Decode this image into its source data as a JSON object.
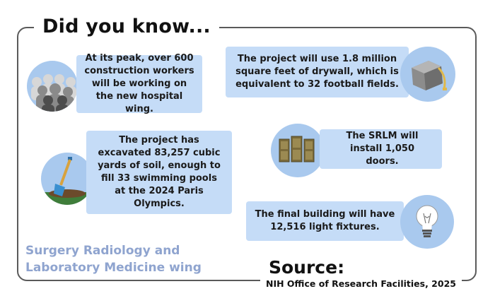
{
  "header": {
    "title": "Did you know..."
  },
  "facts": [
    "At its peak, over 600 construction workers will be working on the new hospital wing.",
    "The project will use 1.8 million square feet of drywall, which is equivalent to 32 football fields.",
    "The project has excavated 83,257 cubic yards of soil, enough to fill 33 swimming pools at the 2024 Paris Olympics.",
    "The SRLM will install 1,050 doors.",
    "The final building will have 12,516 light fixtures."
  ],
  "footer": {
    "wing_line1": "Surgery Radiology and",
    "wing_line2": "Laboratory Medicine wing",
    "source_title": "Source:",
    "source_text": "NIH Office of Research Facilities, 2025"
  },
  "icons": [
    "workers-icon",
    "drywall-roll-icon",
    "shovel-icon",
    "doors-icon",
    "light-bulb-icon"
  ],
  "colors": {
    "bubble": "#c5dcf7",
    "circle": "#a9c9ee",
    "wing_text": "#8fa4cf",
    "frame": "#5a5a5a"
  }
}
